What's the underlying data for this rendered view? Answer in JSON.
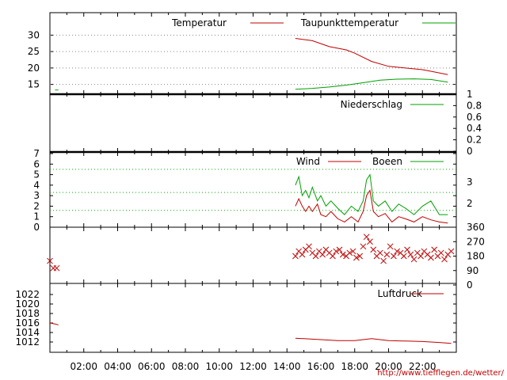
{
  "footer": {
    "credit": "http://www.tiefflegen.de/wetter/"
  },
  "colors": {
    "red": "#c00000",
    "green": "#00a000"
  },
  "x_ticks": [
    "02:00",
    "04:00",
    "06:00",
    "08:00",
    "10:00",
    "12:00",
    "14:00",
    "16:00",
    "18:00",
    "20:00",
    "22:00"
  ],
  "chart_data": [
    {
      "id": "temp",
      "type": "line",
      "ylim": [
        12.5,
        32.5
      ],
      "y_ticks": [
        15,
        20,
        25,
        30
      ],
      "y_side": "left",
      "legend": [
        "Temperatur",
        "Taupunkttemperatur"
      ],
      "series": [
        {
          "name": "Temperatur",
          "color": "#c00000",
          "x": [
            14.5,
            15.5,
            16.5,
            17.5,
            18,
            19,
            20,
            21,
            22,
            22.5,
            23.5
          ],
          "y": [
            29,
            28.3,
            26.5,
            25.5,
            24.5,
            22,
            20.5,
            20,
            19.5,
            19,
            18
          ]
        },
        {
          "name": "Taupunkttemperatur",
          "color": "#00a000",
          "x": [
            0.3,
            0.5,
            14.5,
            15.5,
            16.5,
            17.5,
            18.5,
            19.5,
            20.5,
            21.5,
            22.5,
            23.5
          ],
          "y": [
            13.3,
            13.3,
            13.5,
            13.8,
            14.2,
            14.8,
            15.5,
            16.3,
            16.6,
            16.7,
            16.5,
            15.7
          ]
        }
      ]
    },
    {
      "id": "rain",
      "type": "line",
      "ylim": [
        0,
        1
      ],
      "y_ticks": [
        0,
        0.2,
        0.4,
        0.6,
        0.8,
        1
      ],
      "y_side": "right",
      "legend": [
        "Niederschlag"
      ],
      "series": [
        {
          "name": "Niederschlag",
          "color": "#00a000",
          "x": [],
          "y": []
        }
      ]
    },
    {
      "id": "wind",
      "type": "line",
      "ylim": [
        0,
        7
      ],
      "y_ticks": [
        0,
        1,
        2,
        3,
        4,
        5,
        6,
        7
      ],
      "y_side": "left",
      "right_ticks": [
        2,
        3
      ],
      "legend": [
        "Wind",
        "Boeen"
      ],
      "series": [
        {
          "name": "Wind",
          "color": "#c00000",
          "x": [
            14.5,
            14.7,
            14.9,
            15.1,
            15.3,
            15.5,
            15.8,
            16,
            16.3,
            16.6,
            17,
            17.4,
            17.8,
            18.2,
            18.5,
            18.7,
            18.9,
            19.1,
            19.4,
            19.8,
            20.2,
            20.6,
            21,
            21.5,
            22,
            22.5,
            23,
            23.5
          ],
          "y": [
            2,
            2.7,
            2,
            1.5,
            2,
            1.5,
            2.2,
            1.2,
            1,
            1.5,
            0.8,
            0.5,
            1,
            0.5,
            1.5,
            3,
            3.5,
            1.5,
            1,
            1.3,
            0.5,
            1,
            0.8,
            0.5,
            1,
            0.7,
            0.5,
            0.4
          ]
        },
        {
          "name": "Boeen",
          "color": "#00a000",
          "x": [
            0.4,
            14.5,
            14.7,
            14.9,
            15.1,
            15.3,
            15.5,
            15.8,
            16,
            16.3,
            16.6,
            17,
            17.4,
            17.8,
            18.2,
            18.5,
            18.7,
            18.9,
            19.1,
            19.4,
            19.8,
            20.2,
            20.6,
            21,
            21.5,
            22,
            22.5,
            23,
            23.5
          ],
          "y": [
            1,
            4,
            4.8,
            3,
            3.5,
            2.8,
            3.8,
            2.5,
            3,
            2,
            2.5,
            1.8,
            1.2,
            2,
            1.5,
            2.5,
            4.5,
            5,
            2.5,
            2,
            2.5,
            1.5,
            2.2,
            1.8,
            1.2,
            2,
            2.5,
            1.2,
            1.2
          ]
        }
      ]
    },
    {
      "id": "dir",
      "type": "scatter",
      "ylim": [
        0,
        360
      ],
      "y_ticks": [
        0,
        90,
        180,
        270,
        360
      ],
      "y_side": "right",
      "marker": "x",
      "color": "#c00000",
      "x": [
        0,
        0.2,
        0.4,
        14.5,
        14.7,
        14.9,
        15.1,
        15.3,
        15.5,
        15.7,
        15.9,
        16.1,
        16.3,
        16.5,
        16.7,
        16.9,
        17.1,
        17.3,
        17.5,
        17.7,
        17.9,
        18.1,
        18.3,
        18.5,
        18.7,
        18.9,
        19.1,
        19.3,
        19.5,
        19.7,
        19.9,
        20.1,
        20.3,
        20.5,
        20.7,
        20.9,
        21.1,
        21.3,
        21.5,
        21.7,
        21.9,
        22.1,
        22.3,
        22.5,
        22.7,
        22.9,
        23.1,
        23.3,
        23.5,
        23.7
      ],
      "y": [
        150,
        105,
        105,
        180,
        210,
        190,
        220,
        240,
        200,
        180,
        210,
        190,
        220,
        200,
        180,
        210,
        220,
        190,
        180,
        200,
        210,
        170,
        180,
        240,
        300,
        270,
        220,
        180,
        200,
        150,
        190,
        240,
        180,
        210,
        200,
        180,
        220,
        190,
        160,
        200,
        180,
        210,
        190,
        170,
        220,
        180,
        200,
        160,
        190,
        210
      ]
    },
    {
      "id": "press",
      "type": "line",
      "ylim": [
        1011,
        1023
      ],
      "y_ticks": [
        1012,
        1014,
        1016,
        1018,
        1020,
        1022
      ],
      "y_side": "left",
      "legend": [
        "Luftdruck"
      ],
      "series": [
        {
          "name": "Luftdruck",
          "color": "#c00000",
          "x": [
            0,
            0.3,
            0.5,
            14.5,
            15,
            16,
            17,
            18,
            18.5,
            19,
            19.5,
            20,
            21,
            22,
            22.5,
            23,
            23.7
          ],
          "y": [
            1016,
            1015.8,
            1015.6,
            1012.8,
            1012.7,
            1012.5,
            1012.3,
            1012.3,
            1012.5,
            1012.7,
            1012.5,
            1012.3,
            1012.2,
            1012.1,
            1012,
            1011.9,
            1011.7
          ]
        }
      ]
    }
  ]
}
